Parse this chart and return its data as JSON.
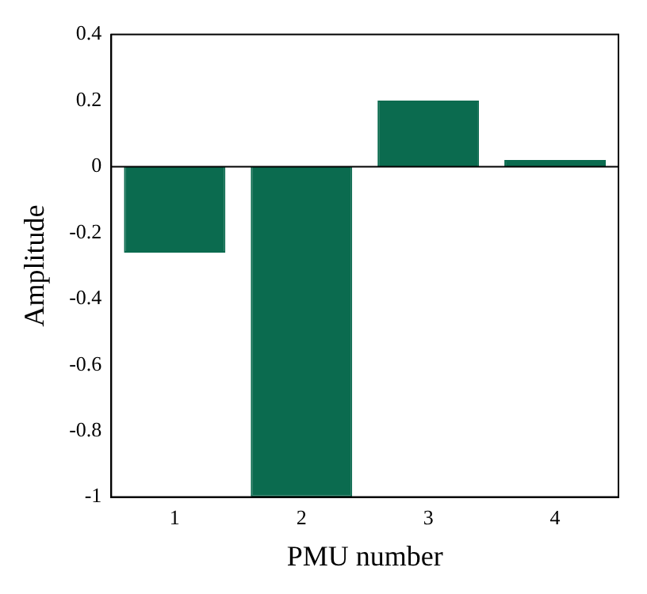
{
  "chart_data": {
    "type": "bar",
    "xlabel": "PMU number",
    "ylabel": "Amplitude",
    "categories": [
      "1",
      "2",
      "3",
      "4"
    ],
    "values": [
      -0.26,
      -1.0,
      0.2,
      0.02
    ],
    "color": "#0b6b4f",
    "ylim": [
      -1,
      0.4
    ],
    "yticks": [
      -1,
      -0.8,
      -0.6,
      -0.4,
      -0.2,
      0,
      0.2,
      0.4
    ],
    "legend": false
  }
}
